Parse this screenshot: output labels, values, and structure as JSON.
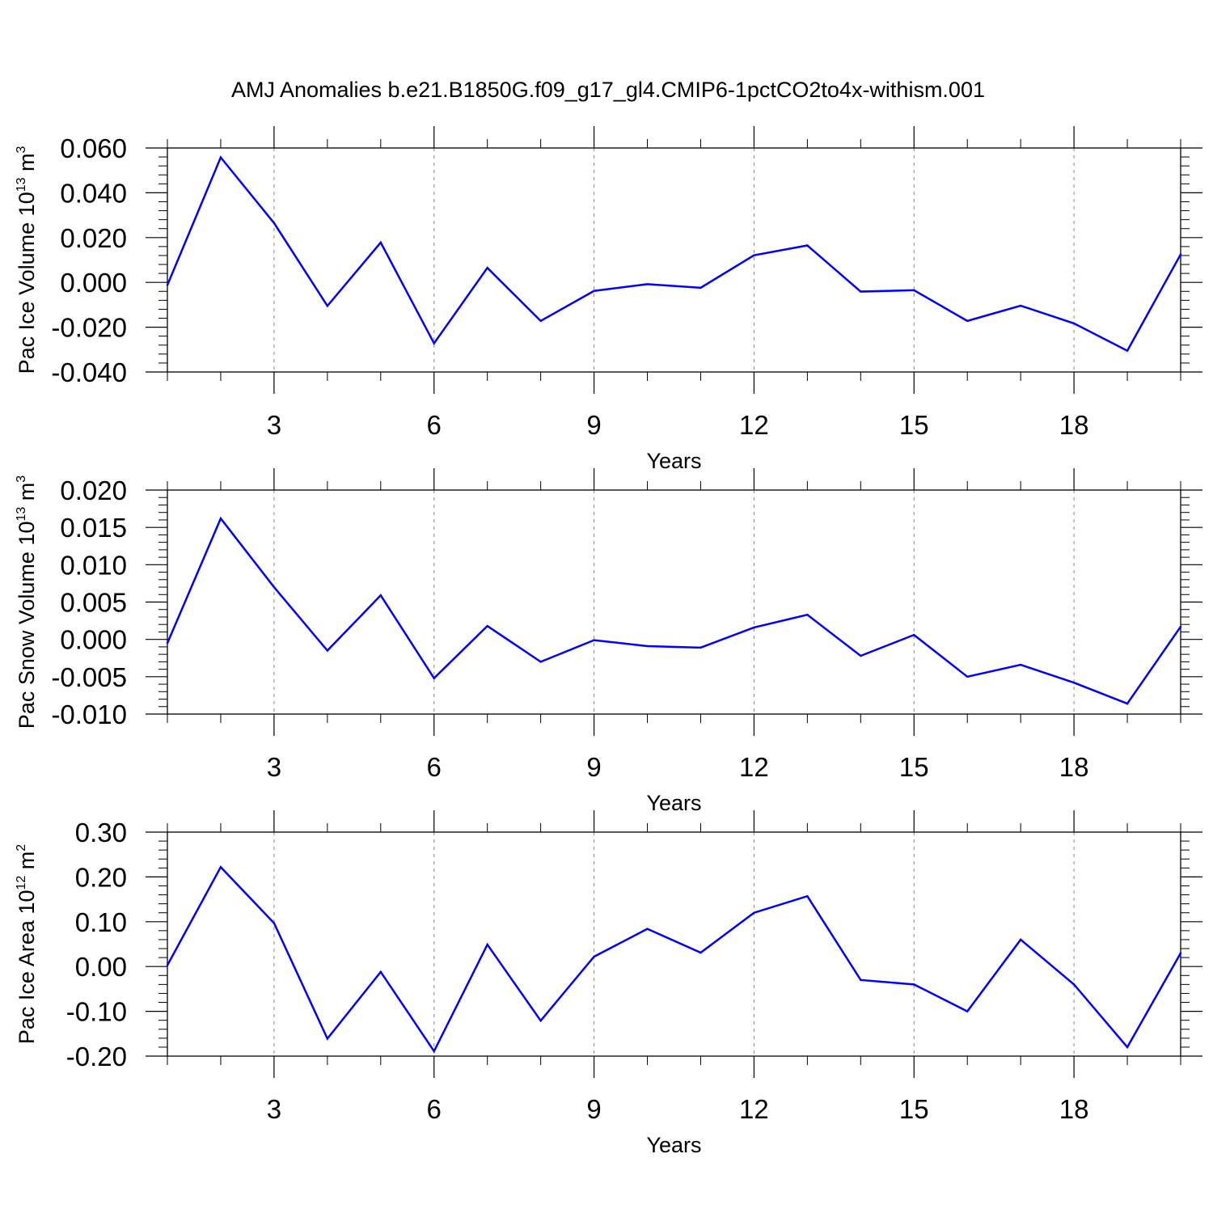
{
  "title": "AMJ Anomalies b.e21.B1850G.f09_g17_gl4.CMIP6-1pctCO2to4x-withism.001",
  "colors": {
    "series": "#0000ff",
    "axis": "#000000",
    "grid": "#888888",
    "background": "#ffffff"
  },
  "chart_data": [
    {
      "type": "line",
      "xlabel": "Years",
      "ylabel": {
        "prefix": "Pac Ice Volume 10",
        "exponent": "13",
        "unit": " m",
        "unit_exponent": "3"
      },
      "xlim": [
        1,
        20
      ],
      "ylim": [
        -0.04,
        0.06
      ],
      "x_ticks": [
        3,
        6,
        9,
        12,
        15,
        18
      ],
      "x_tick_labels": [
        "3",
        "6",
        "9",
        "12",
        "15",
        "18"
      ],
      "y_ticks": [
        -0.04,
        -0.02,
        0.0,
        0.02,
        0.04,
        0.06
      ],
      "y_tick_labels": [
        "-0.040",
        "-0.020",
        "0.000",
        "0.020",
        "0.040",
        "0.060"
      ],
      "grid": "vertical dashed at x ticks",
      "x": [
        1,
        2,
        3,
        4,
        5,
        6,
        7,
        8,
        9,
        10,
        11,
        12,
        13,
        14,
        15,
        16,
        17,
        18,
        19,
        20
      ],
      "values": [
        -0.0012,
        0.0558,
        0.0265,
        -0.0105,
        0.0178,
        -0.0272,
        0.0065,
        -0.0172,
        -0.0038,
        -0.0008,
        -0.0024,
        0.0121,
        0.0165,
        -0.0041,
        -0.0035,
        -0.0172,
        -0.0104,
        -0.0183,
        -0.0305,
        0.0125
      ]
    },
    {
      "type": "line",
      "xlabel": "Years",
      "ylabel": {
        "prefix": "Pac Snow Volume 10",
        "exponent": "13",
        "unit": " m",
        "unit_exponent": "3"
      },
      "xlim": [
        1,
        20
      ],
      "ylim": [
        -0.01,
        0.02
      ],
      "x_ticks": [
        3,
        6,
        9,
        12,
        15,
        18
      ],
      "x_tick_labels": [
        "3",
        "6",
        "9",
        "12",
        "15",
        "18"
      ],
      "y_ticks": [
        -0.01,
        -0.005,
        0.0,
        0.005,
        0.01,
        0.015,
        0.02
      ],
      "y_tick_labels": [
        "-0.010",
        "-0.005",
        "0.000",
        "0.005",
        "0.010",
        "0.015",
        "0.020"
      ],
      "grid": "vertical dashed at x ticks",
      "x": [
        1,
        2,
        3,
        4,
        5,
        6,
        7,
        8,
        9,
        10,
        11,
        12,
        13,
        14,
        15,
        16,
        17,
        18,
        19,
        20
      ],
      "values": [
        -0.0005,
        0.0162,
        0.007,
        -0.0015,
        0.0059,
        -0.0052,
        0.0018,
        -0.003,
        -0.0001,
        -0.0009,
        -0.0011,
        0.0016,
        0.0033,
        -0.0022,
        0.0006,
        -0.005,
        -0.0034,
        -0.0058,
        -0.0086,
        0.0017
      ]
    },
    {
      "type": "line",
      "xlabel": "Years",
      "ylabel": {
        "prefix": "Pac Ice Area 10",
        "exponent": "12",
        "unit": " m",
        "unit_exponent": "2"
      },
      "xlim": [
        1,
        20
      ],
      "ylim": [
        -0.2,
        0.3
      ],
      "x_ticks": [
        3,
        6,
        9,
        12,
        15,
        18
      ],
      "x_tick_labels": [
        "3",
        "6",
        "9",
        "12",
        "15",
        "18"
      ],
      "y_ticks": [
        -0.2,
        -0.1,
        0.0,
        0.1,
        0.2,
        0.3
      ],
      "y_tick_labels": [
        "-0.20",
        "-0.10",
        "0.00",
        "0.10",
        "0.20",
        "0.30"
      ],
      "grid": "vertical dashed at x ticks",
      "x": [
        1,
        2,
        3,
        4,
        5,
        6,
        7,
        8,
        9,
        10,
        11,
        12,
        13,
        14,
        15,
        16,
        17,
        18,
        19,
        20
      ],
      "values": [
        0.003,
        0.222,
        0.097,
        -0.161,
        -0.012,
        -0.189,
        0.049,
        -0.121,
        0.022,
        0.084,
        0.031,
        0.12,
        0.157,
        -0.03,
        -0.04,
        -0.1,
        0.06,
        -0.04,
        -0.18,
        0.03
      ]
    }
  ]
}
